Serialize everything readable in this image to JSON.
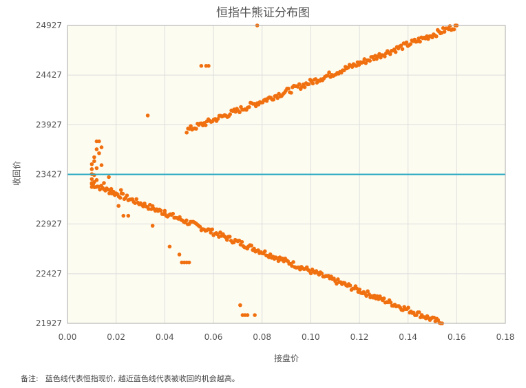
{
  "chart_data": {
    "type": "scatter",
    "title": "恒指牛熊证分布图",
    "xlabel": "接盘价",
    "ylabel": "收回价",
    "xlim": [
      0,
      0.18
    ],
    "ylim": [
      21927,
      24927
    ],
    "x_ticks": [
      "0.00",
      "0.02",
      "0.04",
      "0.06",
      "0.08",
      "0.10",
      "0.12",
      "0.14",
      "0.16",
      "0.18"
    ],
    "y_ticks": [
      "21927",
      "22427",
      "22927",
      "23427",
      "23927",
      "24427",
      "24927"
    ],
    "grid": true,
    "reference_line": {
      "y": 23427,
      "color": "#29a8c4"
    },
    "point_color": "#f07010",
    "segments": [
      {
        "x": [
          0.01,
          0.154
        ],
        "y": [
          23330,
          21927
        ],
        "count": 260,
        "jitter": 28
      },
      {
        "x": [
          0.049,
          0.16
        ],
        "y": [
          23870,
          24927
        ],
        "count": 200,
        "jitter": 30
      }
    ],
    "points": [
      [
        0.01,
        23300
      ],
      [
        0.01,
        23340
      ],
      [
        0.01,
        23380
      ],
      [
        0.01,
        23430
      ],
      [
        0.01,
        23480
      ],
      [
        0.01,
        23530
      ],
      [
        0.011,
        23350
      ],
      [
        0.011,
        23420
      ],
      [
        0.011,
        23560
      ],
      [
        0.011,
        23600
      ],
      [
        0.012,
        23370
      ],
      [
        0.012,
        23490
      ],
      [
        0.012,
        23680
      ],
      [
        0.012,
        23760
      ],
      [
        0.013,
        23640
      ],
      [
        0.013,
        23760
      ],
      [
        0.014,
        23520
      ],
      [
        0.014,
        23700
      ],
      [
        0.015,
        23340
      ],
      [
        0.016,
        23280
      ],
      [
        0.017,
        23400
      ],
      [
        0.018,
        23280
      ],
      [
        0.021,
        23110
      ],
      [
        0.022,
        23270
      ],
      [
        0.023,
        23010
      ],
      [
        0.025,
        23010
      ],
      [
        0.033,
        24020
      ],
      [
        0.035,
        22910
      ],
      [
        0.04,
        23060
      ],
      [
        0.042,
        22700
      ],
      [
        0.046,
        22620
      ],
      [
        0.047,
        22540
      ],
      [
        0.048,
        22540
      ],
      [
        0.049,
        22540
      ],
      [
        0.05,
        22540
      ],
      [
        0.055,
        24520
      ],
      [
        0.057,
        24520
      ],
      [
        0.058,
        24520
      ],
      [
        0.071,
        22110
      ],
      [
        0.072,
        22010
      ],
      [
        0.073,
        22010
      ],
      [
        0.074,
        22010
      ],
      [
        0.077,
        22010
      ],
      [
        0.078,
        24927
      ]
    ]
  },
  "note": {
    "label": "备注:",
    "text": "蓝色线代表恒指现价, 越近蓝色线代表被收回的机会越高。"
  }
}
